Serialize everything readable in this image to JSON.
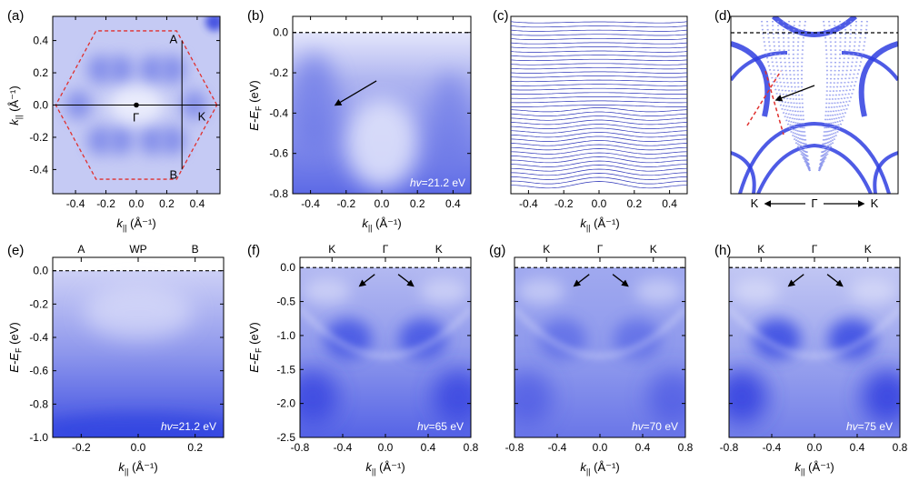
{
  "colors": {
    "intensity_low": "#ffffff",
    "intensity_high": "#2a3fe0",
    "bz_dash": "#e0302e",
    "fermi_dash": "#000000",
    "edc_line": "#2b33b8"
  },
  "figure": {
    "panels": [
      {
        "id": "a",
        "label": "(a)",
        "type": "heatmap",
        "xlabel": "k",
        "xlabel_sub": "||",
        "xlabel_unit": " (Å⁻¹)",
        "ylabel": "k",
        "ylabel_sub": "||",
        "ylabel_unit": " (Å⁻¹)",
        "xlim": [
          -0.55,
          0.55
        ],
        "ylim": [
          -0.55,
          0.55
        ],
        "xticks": [
          -0.4,
          -0.2,
          0.0,
          0.2,
          0.4
        ],
        "xtick_labels": [
          "-0.4",
          "-0.2",
          "0.0",
          "0.2",
          "0.4"
        ],
        "yticks": [
          -0.4,
          -0.2,
          0.0,
          0.2,
          0.4
        ],
        "ytick_labels": [
          "-0.4",
          "-0.2",
          "0.0",
          "0.2",
          "0.4"
        ],
        "annotations": {
          "point_A": "A",
          "point_B": "B",
          "point_K": "K",
          "point_Gamma": "Γ"
        },
        "cut_AB_k": 0.3,
        "A_k": 0.4,
        "B_k": -0.4
      },
      {
        "id": "b",
        "label": "(b)",
        "type": "heatmap",
        "xlabel": "k",
        "xlabel_sub": "||",
        "xlabel_unit": " (Å⁻¹)",
        "ylabel": "E-E",
        "ylabel_sub": "F",
        "ylabel_unit": " (eV)",
        "xlim": [
          -0.5,
          0.5
        ],
        "ylim": [
          -0.8,
          0.08
        ],
        "xticks": [
          -0.4,
          -0.2,
          0.0,
          0.2,
          0.4
        ],
        "xtick_labels": [
          "-0.4",
          "-0.2",
          "0.0",
          "0.2",
          "0.4"
        ],
        "yticks": [
          0.0,
          -0.2,
          -0.4,
          -0.6,
          -0.8
        ],
        "ytick_labels": [
          "0.0",
          "-0.2",
          "-0.4",
          "-0.6",
          "-0.8"
        ],
        "photon_energy_label": "hv=21.2 eV"
      },
      {
        "id": "c",
        "label": "(c)",
        "type": "line",
        "xlabel": "k",
        "xlabel_sub": "||",
        "xlabel_unit": " (Å⁻¹)",
        "xlim": [
          -0.5,
          0.5
        ],
        "xticks": [
          -0.4,
          -0.2,
          0.0,
          0.2,
          0.4
        ],
        "xtick_labels": [
          "-0.4",
          "-0.2",
          "0.0",
          "0.2",
          "0.4"
        ],
        "n_curves": 40
      },
      {
        "id": "d",
        "label": "(d)",
        "type": "heatmap",
        "annotations": {
          "left": "K",
          "center": "Γ",
          "right": "K"
        }
      },
      {
        "id": "e",
        "label": "(e)",
        "type": "heatmap",
        "xlabel": "k",
        "xlabel_sub": "||",
        "xlabel_unit": " (Å⁻¹)",
        "ylabel": "E-E",
        "ylabel_sub": "F",
        "ylabel_unit": " (eV)",
        "xlim": [
          -0.3,
          0.3
        ],
        "ylim": [
          -1.0,
          0.08
        ],
        "xticks": [
          -0.2,
          0.0,
          0.2
        ],
        "xtick_labels": [
          "-0.2",
          "0.0",
          "0.2"
        ],
        "yticks": [
          0.0,
          -0.2,
          -0.4,
          -0.6,
          -0.8,
          -1.0
        ],
        "ytick_labels": [
          "0.0",
          "-0.2",
          "-0.4",
          "-0.6",
          "-0.8",
          "-1.0"
        ],
        "top_labels": [
          "A",
          "WP",
          "B"
        ],
        "top_positions": [
          -0.2,
          0.0,
          0.2
        ],
        "photon_energy_label": "hv=21.2 eV"
      },
      {
        "id": "f",
        "label": "(f)",
        "type": "heatmap",
        "xlabel": "k",
        "xlabel_sub": "||",
        "xlabel_unit": " (Å⁻¹)",
        "ylabel": "E-E",
        "ylabel_sub": "F",
        "ylabel_unit": " (eV)",
        "xlim": [
          -0.8,
          0.8
        ],
        "ylim": [
          -2.5,
          0.15
        ],
        "xticks": [
          -0.8,
          -0.4,
          0.0,
          0.4,
          0.8
        ],
        "xtick_labels": [
          "-0.8",
          "-0.4",
          "0.0",
          "0.4",
          "0.8"
        ],
        "yticks": [
          0.0,
          -0.5,
          -1.0,
          -1.5,
          -2.0,
          -2.5
        ],
        "ytick_labels": [
          "0.0",
          "-0.5",
          "-1.0",
          "-1.5",
          "-2.0",
          "-2.5"
        ],
        "top_labels": [
          "K",
          "Γ",
          "K"
        ],
        "top_positions": [
          -0.5,
          0.0,
          0.5
        ],
        "photon_energy_label": "hv=65 eV"
      },
      {
        "id": "g",
        "label": "(g)",
        "type": "heatmap",
        "xlabel": "k",
        "xlabel_sub": "||",
        "xlabel_unit": " (Å⁻¹)",
        "xlim": [
          -0.8,
          0.8
        ],
        "ylim": [
          -2.5,
          0.15
        ],
        "xticks": [
          -0.8,
          -0.4,
          0.0,
          0.4,
          0.8
        ],
        "xtick_labels": [
          "-0.8",
          "-0.4",
          "0.0",
          "0.4",
          "0.8"
        ],
        "top_labels": [
          "K",
          "Γ",
          "K"
        ],
        "top_positions": [
          -0.5,
          0.0,
          0.5
        ],
        "photon_energy_label": "hv=70 eV"
      },
      {
        "id": "h",
        "label": "(h)",
        "type": "heatmap",
        "xlabel": "k",
        "xlabel_sub": "||",
        "xlabel_unit": " (Å⁻¹)",
        "xlim": [
          -0.8,
          0.8
        ],
        "ylim": [
          -2.5,
          0.15
        ],
        "xticks": [
          -0.8,
          -0.4,
          0.0,
          0.4,
          0.8
        ],
        "xtick_labels": [
          "-0.8",
          "-0.4",
          "0.0",
          "0.4",
          "0.8"
        ],
        "top_labels": [
          "K",
          "Γ",
          "K"
        ],
        "top_positions": [
          -0.5,
          0.0,
          0.5
        ],
        "photon_energy_label": "hv=75 eV"
      }
    ]
  },
  "chart_data": [
    {
      "type": "heatmap",
      "panel": "a",
      "title": "",
      "xlabel": "k|| (Å⁻¹)",
      "ylabel": "k|| (Å⁻¹)",
      "xlim": [
        -0.55,
        0.55
      ],
      "ylim": [
        -0.55,
        0.55
      ],
      "annotations": [
        "A",
        "B",
        "K",
        "Γ"
      ]
    },
    {
      "type": "heatmap",
      "panel": "b",
      "xlabel": "k|| (Å⁻¹)",
      "ylabel": "E-EF (eV)",
      "xlim": [
        -0.5,
        0.5
      ],
      "ylim": [
        -0.8,
        0.08
      ],
      "annotations": [
        "hv=21.2 eV"
      ]
    },
    {
      "type": "line",
      "panel": "c",
      "xlabel": "k|| (Å⁻¹)",
      "xlim": [
        -0.5,
        0.5
      ],
      "series_count": 40
    },
    {
      "type": "heatmap",
      "panel": "d",
      "annotations": [
        "K",
        "Γ",
        "K"
      ]
    },
    {
      "type": "heatmap",
      "panel": "e",
      "xlabel": "k|| (Å⁻¹)",
      "ylabel": "E-EF (eV)",
      "xlim": [
        -0.3,
        0.3
      ],
      "ylim": [
        -1.0,
        0.08
      ],
      "annotations": [
        "A",
        "WP",
        "B",
        "hv=21.2 eV"
      ]
    },
    {
      "type": "heatmap",
      "panel": "f",
      "xlabel": "k|| (Å⁻¹)",
      "ylabel": "E-EF (eV)",
      "xlim": [
        -0.8,
        0.8
      ],
      "ylim": [
        -2.5,
        0.15
      ],
      "annotations": [
        "K",
        "Γ",
        "K",
        "hv=65 eV"
      ]
    },
    {
      "type": "heatmap",
      "panel": "g",
      "xlabel": "k|| (Å⁻¹)",
      "xlim": [
        -0.8,
        0.8
      ],
      "ylim": [
        -2.5,
        0.15
      ],
      "annotations": [
        "K",
        "Γ",
        "K",
        "hv=70 eV"
      ]
    },
    {
      "type": "heatmap",
      "panel": "h",
      "xlabel": "k|| (Å⁻¹)",
      "xlim": [
        -0.8,
        0.8
      ],
      "ylim": [
        -2.5,
        0.15
      ],
      "annotations": [
        "K",
        "Γ",
        "K",
        "hv=75 eV"
      ]
    }
  ]
}
